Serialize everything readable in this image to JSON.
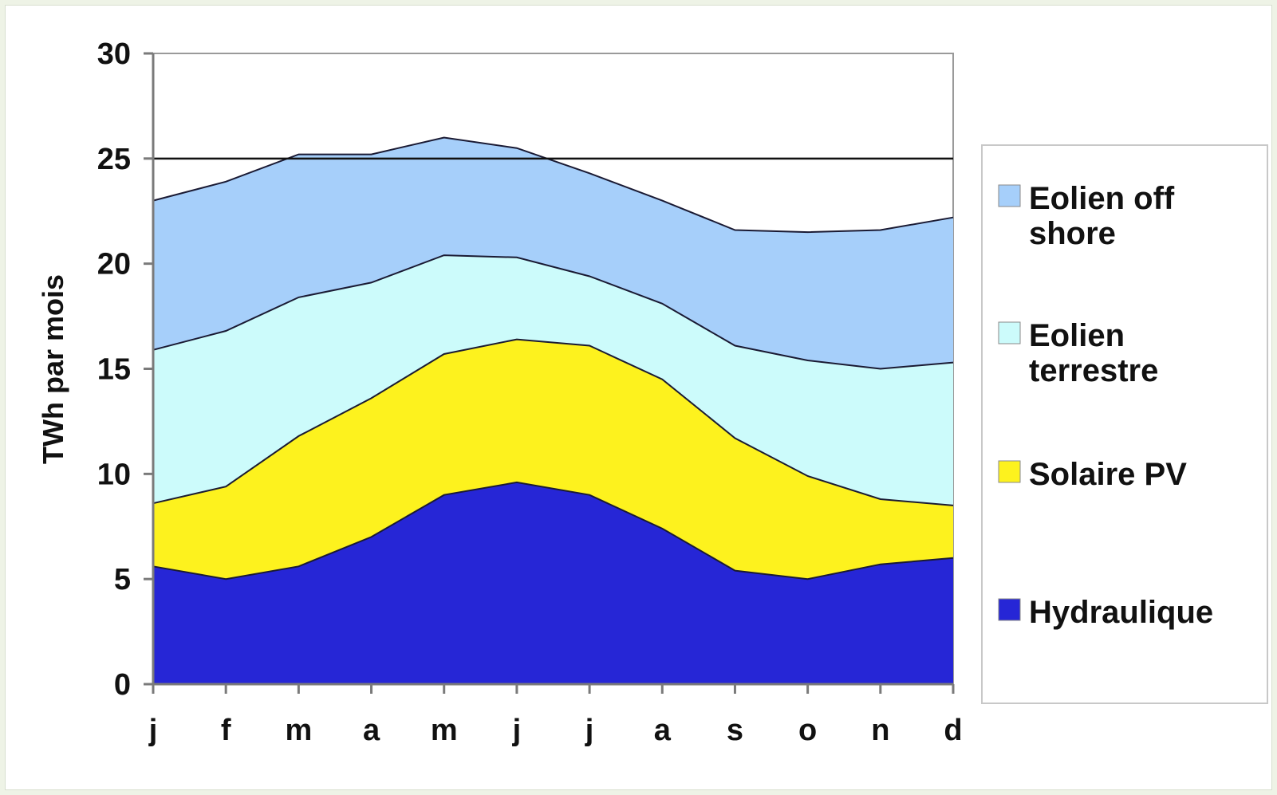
{
  "chart_data": {
    "type": "area",
    "stacked": true,
    "title": "",
    "xlabel": "",
    "ylabel": "TWh par mois",
    "ylim": [
      0,
      30
    ],
    "yticks": [
      0,
      5,
      10,
      15,
      20,
      25,
      30
    ],
    "categories": [
      "j",
      "f",
      "m",
      "a",
      "m",
      "j",
      "j",
      "a",
      "s",
      "o",
      "n",
      "d"
    ],
    "reference_line": 25,
    "grid": false,
    "legend_position": "right",
    "series": [
      {
        "name": "Hydraulique",
        "color": "#2626d6",
        "values": [
          5.6,
          5.0,
          5.6,
          7.0,
          9.0,
          9.6,
          9.0,
          7.4,
          5.4,
          5.0,
          5.7,
          6.0
        ]
      },
      {
        "name": "Solaire PV",
        "color": "#fdf21e",
        "values": [
          3.0,
          4.4,
          6.2,
          6.6,
          6.7,
          6.8,
          7.1,
          7.1,
          6.3,
          4.9,
          3.1,
          2.5
        ]
      },
      {
        "name": "Eolien terrestre",
        "color": "#ccfbfb",
        "values": [
          7.3,
          7.4,
          6.6,
          5.5,
          4.7,
          3.9,
          3.3,
          3.6,
          4.4,
          5.5,
          6.2,
          6.8
        ]
      },
      {
        "name": "Eolien off shore",
        "color": "#a6cffa",
        "values": [
          7.1,
          7.1,
          6.8,
          6.1,
          5.6,
          5.2,
          4.9,
          4.9,
          5.5,
          6.1,
          6.6,
          6.9
        ]
      }
    ],
    "legend": [
      {
        "label_lines": [
          "Eolien off",
          "shore"
        ],
        "color": "#a6cffa"
      },
      {
        "label_lines": [
          "Eolien",
          "terrestre"
        ],
        "color": "#ccfbfb"
      },
      {
        "label_lines": [
          "Solaire PV"
        ],
        "color": "#fdf21e"
      },
      {
        "label_lines": [
          "Hydraulique"
        ],
        "color": "#2626d6"
      }
    ]
  }
}
